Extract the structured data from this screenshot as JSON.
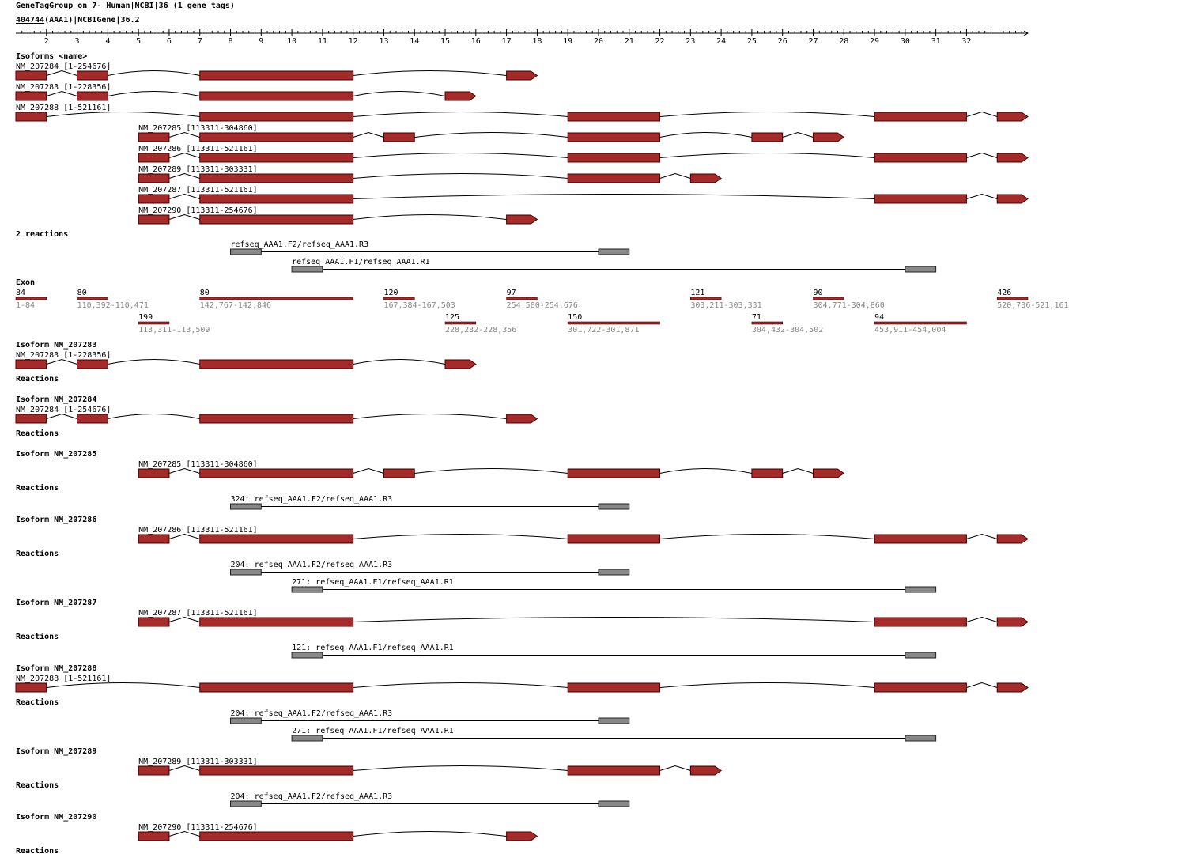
{
  "header": {
    "title_link": "GeneTag",
    "title": "Group on 7- Human|NCBI|36 (1 gene tags)",
    "gene_link": "404744",
    "gene_info": "(AAA1)|NCBIGene|36.2"
  },
  "ruler_ticks": [
    2,
    3,
    4,
    5,
    6,
    7,
    8,
    9,
    10,
    11,
    12,
    13,
    14,
    15,
    16,
    17,
    18,
    19,
    20,
    21,
    22,
    23,
    24,
    25,
    26,
    27,
    28,
    29,
    30,
    31,
    32
  ],
  "isoforms_heading": "Isoforms <name>",
  "isoforms": [
    "NM_207284 [1-254676]",
    "NM_207283 [1-228356]",
    "NM_207288 [1-521161]",
    "NM_207285 [113311-304860]",
    "NM_207286 [113311-521161]",
    "NM_207289 [113311-303331]",
    "NM_207287 [113311-521161]",
    "NM_207290 [113311-254676]"
  ],
  "reactions_heading": "2 reactions",
  "reactions": [
    "refseq_AAA1.F2/refseq_AAA1.R3",
    "refseq_AAA1.F1/refseq_AAA1.R1"
  ],
  "exon_heading": "Exon",
  "exons": [
    {
      "length": "84",
      "range": "1-84"
    },
    {
      "length": "80",
      "range": "110,392-110,471"
    },
    {
      "length": "199",
      "range": "113,311-113,509"
    },
    {
      "length": "80",
      "range": "142,767-142,846"
    },
    {
      "length": "120",
      "range": "167,384-167,503"
    },
    {
      "length": "125",
      "range": "228,232-228,356"
    },
    {
      "length": "97",
      "range": "254,580-254,676"
    },
    {
      "length": "150",
      "range": "301,722-301,871"
    },
    {
      "length": "121",
      "range": "303,211-303,331"
    },
    {
      "length": "71",
      "range": "304,432-304,502"
    },
    {
      "length": "90",
      "range": "304,771-304,860"
    },
    {
      "length": "94",
      "range": "453,911-454,004"
    },
    {
      "length": "426",
      "range": "520,736-521,161"
    }
  ],
  "sections": [
    {
      "heading": "Isoform NM_207283",
      "isoform": "NM_207283 [1-228356]",
      "reactions_heading": "Reactions",
      "reactions": []
    },
    {
      "heading": "Isoform NM_207284",
      "isoform": "NM_207284 [1-254676]",
      "reactions_heading": "Reactions",
      "reactions": []
    },
    {
      "heading": "Isoform NM_207285",
      "isoform": "NM_207285 [113311-304860]",
      "reactions_heading": "Reactions",
      "reactions": [
        "324: refseq_AAA1.F2/refseq_AAA1.R3"
      ]
    },
    {
      "heading": "Isoform NM_207286",
      "isoform": "NM_207286 [113311-521161]",
      "reactions_heading": "Reactions",
      "reactions": [
        "204: refseq_AAA1.F2/refseq_AAA1.R3",
        "271: refseq_AAA1.F1/refseq_AAA1.R1"
      ]
    },
    {
      "heading": "Isoform NM_207287",
      "isoform": "NM_207287 [113311-521161]",
      "reactions_heading": "Reactions",
      "reactions": [
        "121: refseq_AAA1.F1/refseq_AAA1.R1"
      ]
    },
    {
      "heading": "Isoform NM_207288",
      "isoform": "NM_207288 [1-521161]",
      "reactions_heading": "Reactions",
      "reactions": [
        "204: refseq_AAA1.F2/refseq_AAA1.R3",
        "271: refseq_AAA1.F1/refseq_AAA1.R1"
      ]
    },
    {
      "heading": "Isoform NM_207289",
      "isoform": "NM_207289 [113311-303331]",
      "reactions_heading": "Reactions",
      "reactions": [
        "204: refseq_AAA1.F2/refseq_AAA1.R3"
      ]
    },
    {
      "heading": "Isoform NM_207290",
      "isoform": "NM_207290 [113311-254676]",
      "reactions_heading": "Reactions",
      "reactions": []
    }
  ]
}
